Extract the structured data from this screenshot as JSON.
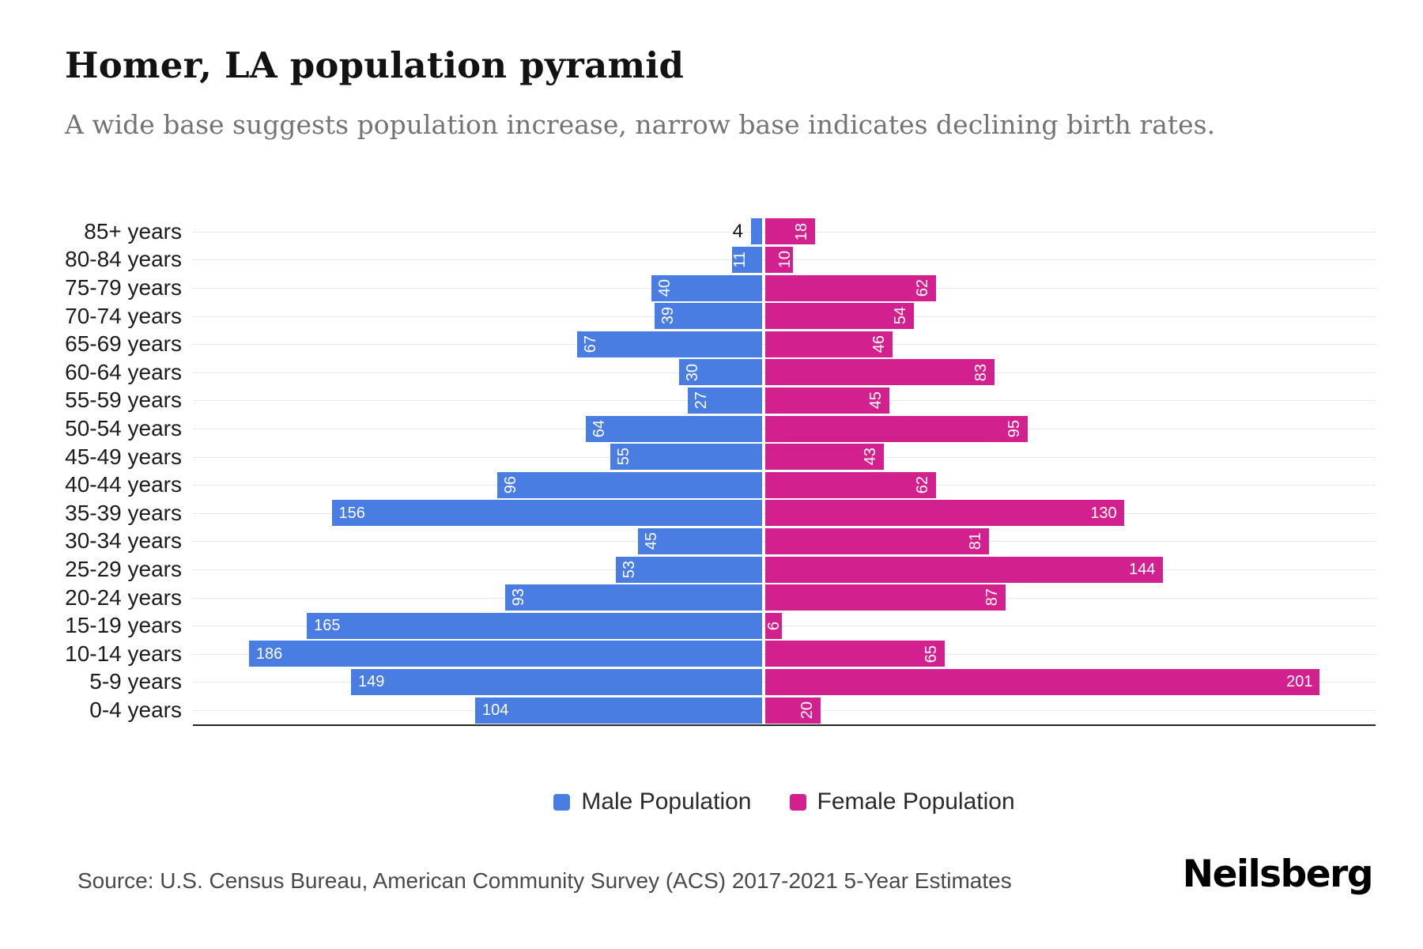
{
  "chart_data": {
    "type": "bar",
    "variant": "population-pyramid",
    "title": "Homer, LA population pyramid",
    "subtitle": "A wide base suggests population increase, narrow base indicates declining birth rates.",
    "categories": [
      "85+ years",
      "80-84 years",
      "75-79 years",
      "70-74 years",
      "65-69 years",
      "60-64 years",
      "55-59 years",
      "50-54 years",
      "45-49 years",
      "40-44 years",
      "35-39 years",
      "30-34 years",
      "25-29 years",
      "20-24 years",
      "15-19 years",
      "10-14 years",
      "5-9 years",
      "0-4 years"
    ],
    "series": [
      {
        "name": "Male Population",
        "side": "left",
        "color": "#4a7de2",
        "values": [
          4,
          11,
          40,
          39,
          67,
          30,
          27,
          64,
          55,
          96,
          156,
          45,
          53,
          93,
          165,
          186,
          149,
          104
        ]
      },
      {
        "name": "Female Population",
        "side": "right",
        "color": "#d2218e",
        "values": [
          18,
          10,
          62,
          54,
          46,
          83,
          45,
          95,
          43,
          62,
          130,
          81,
          144,
          87,
          6,
          65,
          201,
          20
        ]
      }
    ],
    "value_labels": "inside-bar-outer-ends",
    "grid": true,
    "legend_position": "bottom",
    "axis": {
      "category_axis": "left",
      "max_male": 186,
      "max_female": 201
    }
  },
  "footer": {
    "source": "Source: U.S. Census Bureau, American Community Survey (ACS) 2017-2021 5-Year Estimates",
    "brand": "Neilsberg"
  }
}
